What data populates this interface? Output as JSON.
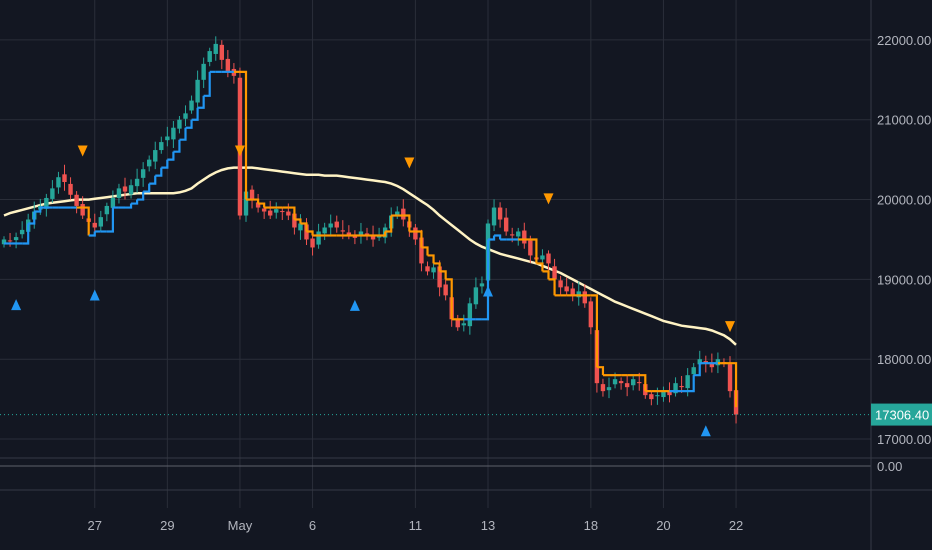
{
  "chart_data": {
    "type": "candlestick",
    "ylim": [
      16800,
      22500
    ],
    "y_ticks": [
      {
        "value": 22000,
        "label": "22000.00"
      },
      {
        "value": 21000,
        "label": "21000.00"
      },
      {
        "value": 20000,
        "label": "20000.00"
      },
      {
        "value": 19000,
        "label": "19000.00"
      },
      {
        "value": 18000,
        "label": "18000.00"
      },
      {
        "value": 17000,
        "label": "17000.00"
      }
    ],
    "x_ticks": [
      {
        "label": "27",
        "index": 15
      },
      {
        "label": "29",
        "index": 27
      },
      {
        "label": "May",
        "index": 39
      },
      {
        "label": "6",
        "index": 51
      },
      {
        "label": "11",
        "index": 68
      },
      {
        "label": "13",
        "index": 80
      },
      {
        "label": "18",
        "index": 97
      },
      {
        "label": "20",
        "index": 109
      },
      {
        "label": "22",
        "index": 121
      }
    ],
    "last_price": {
      "value": 17306.4,
      "label": "17306.40"
    },
    "sub_pane": {
      "label": "0.00"
    },
    "colors": {
      "background": "#131722",
      "grid": "#2a2e39",
      "up": "#26a69a",
      "down": "#ef5350",
      "trail_up": "#2196f3",
      "trail_down": "#ff9800",
      "ma": "#fff3c4",
      "last_price": "#26a69a",
      "text": "#b2b5be"
    },
    "closes": [
      19500,
      19480,
      19530,
      19620,
      19750,
      19850,
      19920,
      20020,
      20140,
      20280,
      20220,
      20060,
      19920,
      19800,
      19720,
      19650,
      19780,
      19920,
      20020,
      20140,
      20100,
      20180,
      20260,
      20380,
      20500,
      20620,
      20720,
      20790,
      20900,
      21000,
      21080,
      21240,
      21500,
      21700,
      21860,
      21950,
      21750,
      21600,
      21550,
      19800,
      20100,
      20000,
      19900,
      19850,
      19800,
      19880,
      19850,
      19800,
      19650,
      19700,
      19500,
      19400,
      19600,
      19650,
      19700,
      19650,
      19600,
      19550,
      19520,
      19600,
      19550,
      19500,
      19560,
      19650,
      19800,
      19850,
      19750,
      19650,
      19500,
      19200,
      19100,
      19150,
      18900,
      18800,
      18500,
      18400,
      18450,
      18700,
      18900,
      18950,
      19700,
      19900,
      19750,
      19600,
      19550,
      19600,
      19450,
      19300,
      19250,
      19300,
      19200,
      19000,
      18900,
      18850,
      18800,
      18850,
      18700,
      18400,
      17700,
      17600,
      17650,
      17750,
      17700,
      17650,
      17750,
      17700,
      17550,
      17500,
      17550,
      17600,
      17550,
      17700,
      17650,
      17800,
      17900,
      18000,
      17950,
      17900,
      18000,
      17950,
      17600,
      17306.4
    ],
    "ma": [
      19800,
      19830,
      19850,
      19870,
      19890,
      19910,
      19930,
      19950,
      19960,
      19970,
      19980,
      19990,
      20000,
      20000,
      20000,
      20010,
      20020,
      20030,
      20040,
      20050,
      20060,
      20070,
      20080,
      20080,
      20080,
      20080,
      20080,
      20080,
      20080,
      20090,
      20110,
      20140,
      20200,
      20250,
      20300,
      20340,
      20370,
      20390,
      20400,
      20400,
      20400,
      20400,
      20390,
      20380,
      20370,
      20360,
      20350,
      20340,
      20330,
      20320,
      20310,
      20310,
      20310,
      20300,
      20300,
      20300,
      20290,
      20280,
      20270,
      20260,
      20250,
      20240,
      20230,
      20220,
      20200,
      20170,
      20130,
      20080,
      20030,
      19980,
      19930,
      19870,
      19800,
      19740,
      19680,
      19620,
      19560,
      19500,
      19450,
      19410,
      19380,
      19350,
      19320,
      19300,
      19280,
      19260,
      19240,
      19220,
      19200,
      19170,
      19140,
      19110,
      19080,
      19040,
      19000,
      18960,
      18920,
      18880,
      18840,
      18800,
      18760,
      18720,
      18690,
      18660,
      18630,
      18600,
      18570,
      18540,
      18510,
      18480,
      18460,
      18440,
      18420,
      18410,
      18400,
      18390,
      18380,
      18360,
      18330,
      18300,
      18250,
      18180
    ],
    "trail": [
      19450,
      19450,
      19450,
      19450,
      19700,
      19850,
      19900,
      19900,
      19900,
      19900,
      19900,
      19900,
      19900,
      19900,
      19550,
      19600,
      19600,
      19600,
      19900,
      19900,
      19900,
      19950,
      20000,
      20100,
      20200,
      20300,
      20400,
      20500,
      20600,
      20750,
      20900,
      21000,
      21150,
      21300,
      21600,
      21600,
      21600,
      21600,
      21600,
      21600,
      20000,
      20000,
      19950,
      19900,
      19900,
      19900,
      19900,
      19900,
      19750,
      19700,
      19600,
      19550,
      19550,
      19550,
      19550,
      19550,
      19550,
      19550,
      19550,
      19550,
      19550,
      19550,
      19550,
      19600,
      19800,
      19800,
      19800,
      19600,
      19600,
      19400,
      19300,
      19200,
      19100,
      19000,
      18500,
      18500,
      18500,
      18500,
      18500,
      18500,
      19500,
      19550,
      19500,
      19500,
      19500,
      19500,
      19500,
      19500,
      19200,
      19100,
      19000,
      18800,
      18800,
      18800,
      18800,
      18800,
      18800,
      18800,
      17900,
      17800,
      17800,
      17800,
      17800,
      17800,
      17800,
      17800,
      17600,
      17600,
      17600,
      17600,
      17600,
      17600,
      17600,
      17600,
      17800,
      17950,
      17950,
      17950,
      17950,
      17950,
      17950,
      17400
    ],
    "trail_dir": [
      "up",
      "up",
      "up",
      "up",
      "up",
      "up",
      "up",
      "up",
      "up",
      "up",
      "up",
      "up",
      "up",
      "down",
      "down",
      "up",
      "up",
      "up",
      "up",
      "up",
      "up",
      "up",
      "up",
      "up",
      "up",
      "up",
      "up",
      "up",
      "up",
      "up",
      "up",
      "up",
      "up",
      "up",
      "up",
      "up",
      "up",
      "up",
      "up",
      "down",
      "down",
      "down",
      "down",
      "down",
      "down",
      "down",
      "down",
      "down",
      "down",
      "down",
      "down",
      "down",
      "down",
      "down",
      "down",
      "down",
      "down",
      "down",
      "down",
      "down",
      "down",
      "down",
      "down",
      "down",
      "down",
      "down",
      "down",
      "down",
      "down",
      "down",
      "down",
      "down",
      "down",
      "down",
      "down",
      "down",
      "down",
      "up",
      "up",
      "up",
      "up",
      "up",
      "up",
      "up",
      "up",
      "up",
      "down",
      "down",
      "down",
      "down",
      "down",
      "down",
      "down",
      "down",
      "down",
      "down",
      "down",
      "down",
      "down",
      "down",
      "down",
      "down",
      "down",
      "down",
      "down",
      "down",
      "down",
      "down",
      "down",
      "down",
      "down",
      "up",
      "up",
      "up",
      "up",
      "up",
      "up",
      "up",
      "up",
      "down",
      "down",
      "down"
    ],
    "signals": [
      {
        "index": 2,
        "type": "buy"
      },
      {
        "index": 13,
        "type": "sell"
      },
      {
        "index": 15,
        "type": "buy"
      },
      {
        "index": 39,
        "type": "sell"
      },
      {
        "index": 58,
        "type": "buy"
      },
      {
        "index": 67,
        "type": "sell"
      },
      {
        "index": 80,
        "type": "buy"
      },
      {
        "index": 90,
        "type": "sell"
      },
      {
        "index": 116,
        "type": "buy"
      },
      {
        "index": 120,
        "type": "sell"
      }
    ]
  }
}
